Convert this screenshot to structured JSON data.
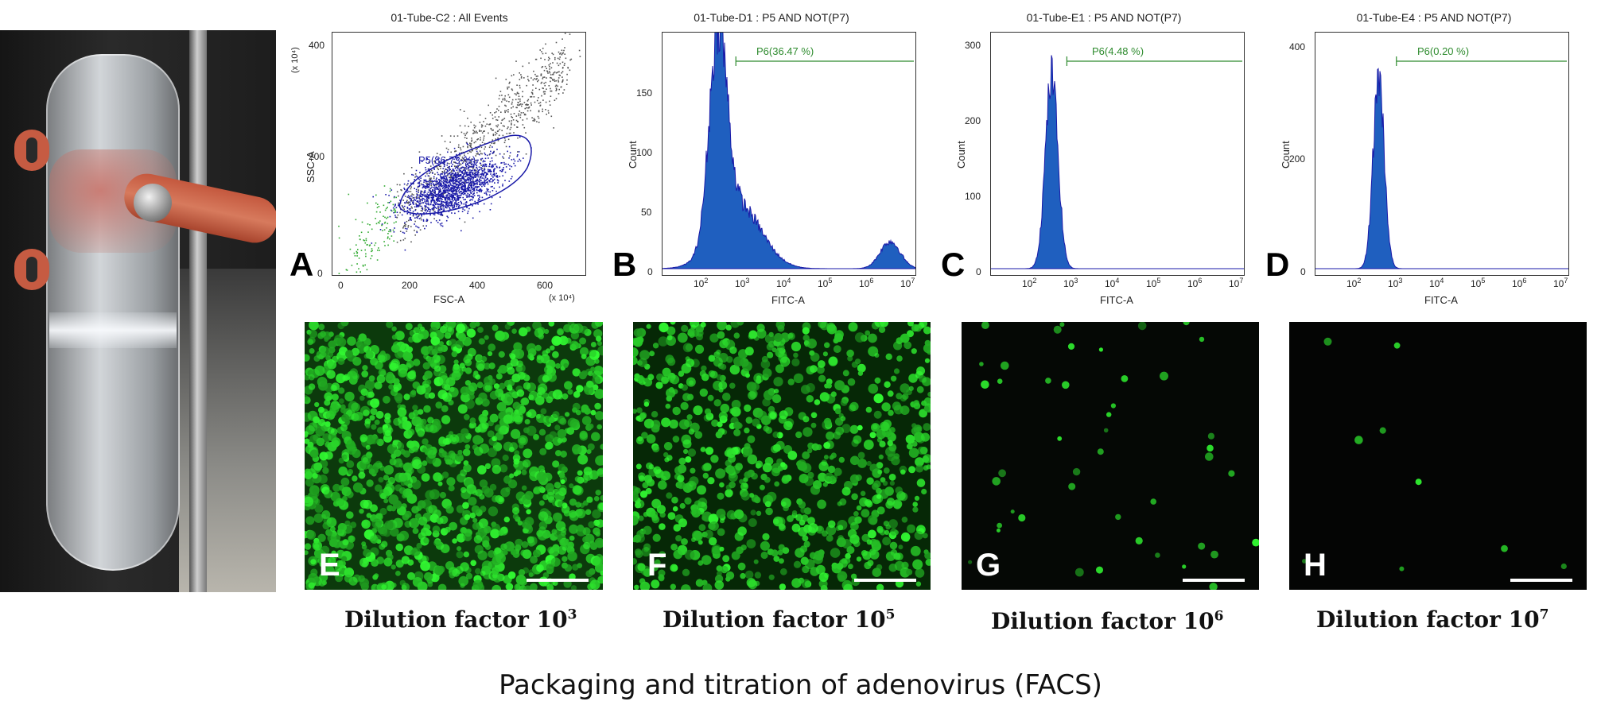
{
  "figure": {
    "caption": "Packaging and titration of adenovirus (FACS)"
  },
  "panels": {
    "A": {
      "letter": "A",
      "title": "01-Tube-C2 : All Events",
      "xlabel": "FSC-A",
      "ylabel": "SSC-A",
      "x_multiplier": "(x 10⁴)",
      "y_multiplier": "(x 10⁴)",
      "xticks": [
        "0",
        "200",
        "400",
        "600"
      ],
      "yticks": [
        "0",
        "200",
        "400"
      ],
      "gate_label": "P5(86.73 %)"
    },
    "B": {
      "letter": "B",
      "title": "01-Tube-D1 : P5 AND NOT(P7)",
      "xlabel": "FITC-A",
      "ylabel": "Count",
      "yticks": [
        "0",
        "50",
        "100",
        "150"
      ],
      "gate_label": "P6(36.47 %)"
    },
    "C": {
      "letter": "C",
      "title": "01-Tube-E1 : P5 AND NOT(P7)",
      "xlabel": "FITC-A",
      "ylabel": "Count",
      "yticks": [
        "0",
        "100",
        "200",
        "300"
      ],
      "gate_label": "P6(4.48 %)"
    },
    "D": {
      "letter": "D",
      "title": "01-Tube-E4 : P5 AND NOT(P7)",
      "xlabel": "FITC-A",
      "ylabel": "Count",
      "yticks": [
        "0",
        "200",
        "400"
      ],
      "gate_label": "P6(0.20 %)"
    }
  },
  "micrographs": [
    {
      "letter": "E",
      "dilution_label": "Dilution factor 10",
      "exponent": "3",
      "density": "very high"
    },
    {
      "letter": "F",
      "dilution_label": "Dilution factor 10",
      "exponent": "5",
      "density": "high"
    },
    {
      "letter": "G",
      "dilution_label": "Dilution factor 10",
      "exponent": "6",
      "density": "sparse"
    },
    {
      "letter": "H",
      "dilution_label": "Dilution factor 10",
      "exponent": "7",
      "density": "very sparse"
    }
  ],
  "colors": {
    "histogram_fill": "#1f5fbf",
    "histogram_edge": "#1a1aa8",
    "gate": "#2e8b2e",
    "scatter_gate": "#1a1aa8",
    "scatter_dots_outside": "#2faa2f",
    "fluorescence": "#3ddc3d"
  }
}
